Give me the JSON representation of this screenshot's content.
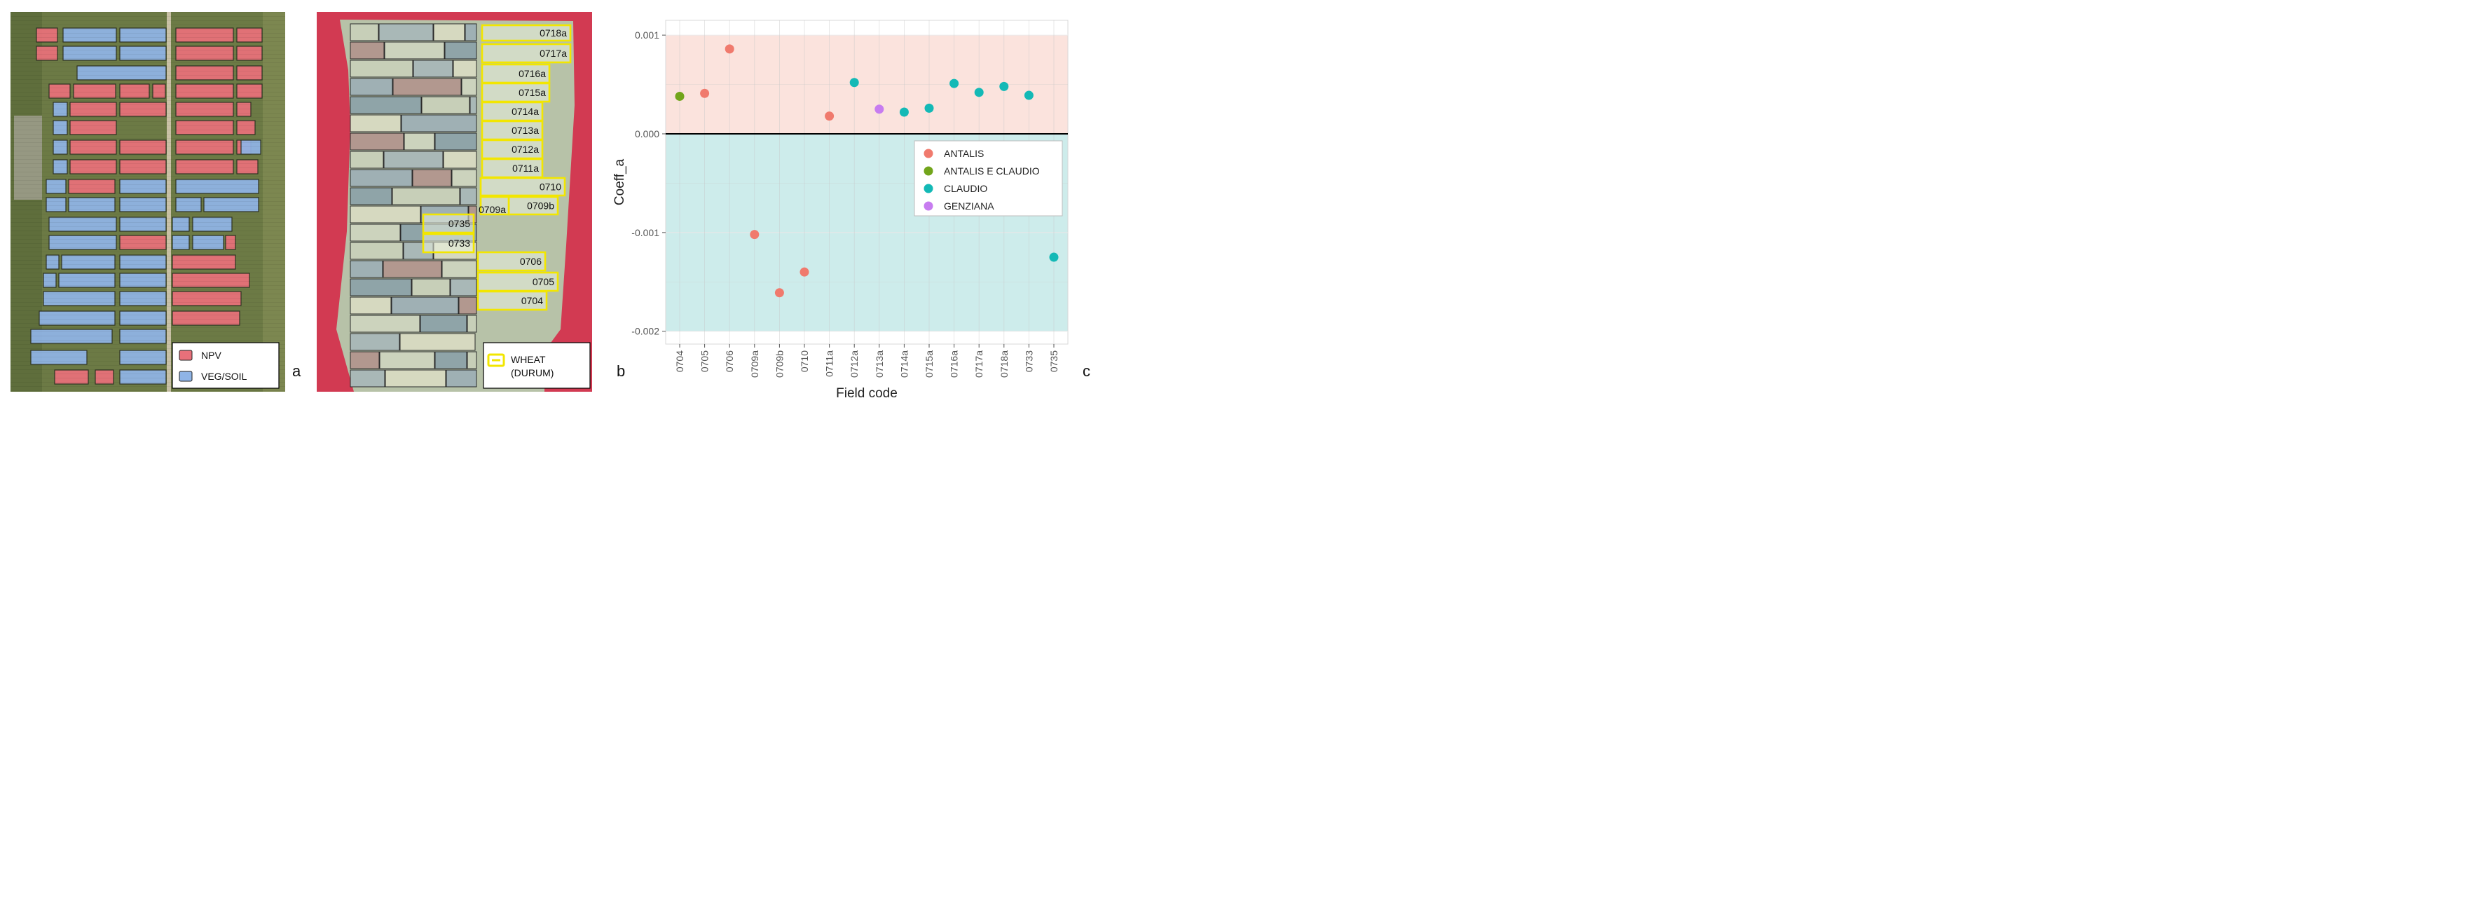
{
  "panels": {
    "a": {
      "letter": "a",
      "legend": [
        {
          "label": "NPV",
          "color": "#e8707a"
        },
        {
          "label": "VEG/SOIL",
          "color": "#8fb4e6"
        }
      ]
    },
    "b": {
      "letter": "b",
      "legend": [
        {
          "label": "WHEAT\n(DURUM)",
          "line1": "WHEAT",
          "line2": "(DURUM)",
          "color": "#f2e600"
        }
      ],
      "field_labels": [
        "0718a",
        "0717a",
        "0716a",
        "0715a",
        "0714a",
        "0713a",
        "0712a",
        "0711a",
        "0710",
        "0709b",
        "0709a",
        "0735",
        "0733",
        "0706",
        "0705",
        "0704"
      ]
    },
    "c": {
      "letter": "c"
    }
  },
  "chart_data": {
    "type": "scatter",
    "title": "",
    "xlabel": "Field code",
    "ylabel": "Coeff_a",
    "ylim": [
      -0.00213,
      0.00115
    ],
    "yticks": [
      0.001,
      0.0,
      -0.001,
      -0.002
    ],
    "ytick_labels": [
      "0.001",
      "0.000",
      "-0.001",
      "-0.002"
    ],
    "grid": true,
    "legend_position": "center-right",
    "categories": [
      "0704",
      "0705",
      "0706",
      "0709a",
      "0709b",
      "0710",
      "0711a",
      "0712a",
      "0713a",
      "0714a",
      "0715a",
      "0716a",
      "0717a",
      "0718a",
      "0733",
      "0735"
    ],
    "bands": [
      {
        "from": 0.0,
        "to": 0.001,
        "color": "#fbe3dd"
      },
      {
        "from": -0.002,
        "to": 0.0,
        "color": "#cdeceb"
      }
    ],
    "zero_line": 0.0,
    "series": [
      {
        "name": "ANTALIS",
        "color": "#f07a6d",
        "points": [
          {
            "x": "0705",
            "y": 0.00041
          },
          {
            "x": "0706",
            "y": 0.00086
          },
          {
            "x": "0709a",
            "y": -0.00102
          },
          {
            "x": "0709b",
            "y": -0.00161
          },
          {
            "x": "0710",
            "y": -0.0014
          },
          {
            "x": "0711a",
            "y": 0.00018
          }
        ]
      },
      {
        "name": "ANTALIS E CLAUDIO",
        "color": "#72a51b",
        "points": [
          {
            "x": "0704",
            "y": 0.00038
          }
        ]
      },
      {
        "name": "CLAUDIO",
        "color": "#13b9b6",
        "points": [
          {
            "x": "0712a",
            "y": 0.00052
          },
          {
            "x": "0714a",
            "y": 0.00022
          },
          {
            "x": "0715a",
            "y": 0.00026
          },
          {
            "x": "0716a",
            "y": 0.00051
          },
          {
            "x": "0717a",
            "y": 0.00042
          },
          {
            "x": "0718a",
            "y": 0.00048
          },
          {
            "x": "0733",
            "y": 0.00039
          },
          {
            "x": "0735",
            "y": -0.00125
          }
        ]
      },
      {
        "name": "GENZIANA",
        "color": "#c77cf0",
        "points": [
          {
            "x": "0713a",
            "y": 0.00025
          }
        ]
      }
    ]
  }
}
